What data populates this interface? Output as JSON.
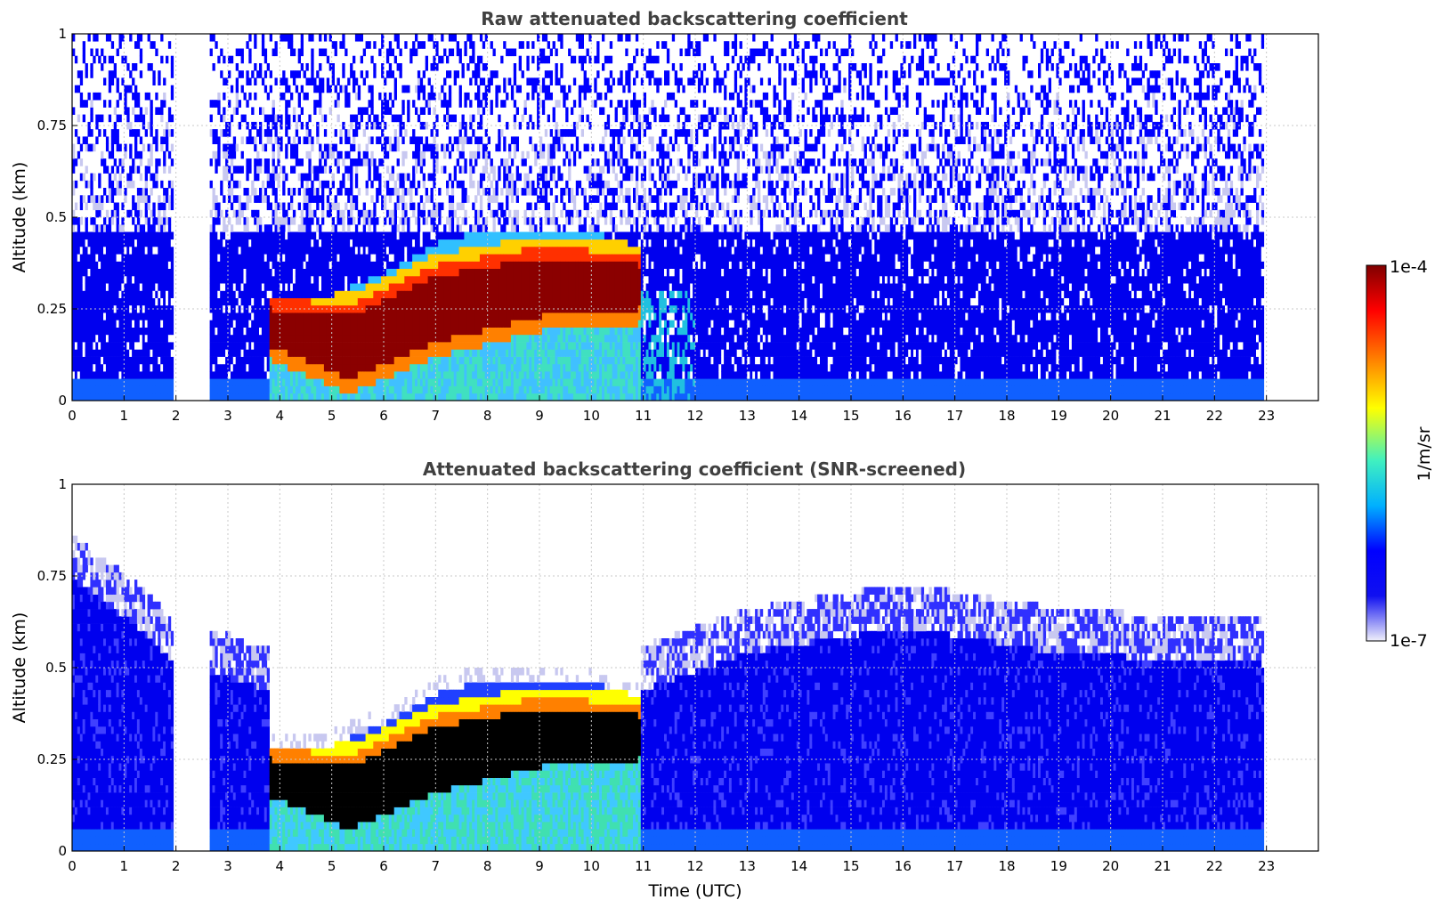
{
  "chart_data": [
    {
      "type": "heatmap",
      "title": "Raw attenuated backscattering coefficient",
      "xlabel": "",
      "ylabel": "Altitude (km)",
      "xlim": [
        0,
        24
      ],
      "ylim": [
        0,
        1
      ],
      "x_ticks": [
        "0",
        "1",
        "2",
        "3",
        "4",
        "5",
        "6",
        "7",
        "8",
        "9",
        "10",
        "11",
        "12",
        "13",
        "14",
        "15",
        "16",
        "17",
        "18",
        "19",
        "20",
        "21",
        "22",
        "23"
      ],
      "y_ticks": [
        "0",
        "0.25",
        "0.5",
        "0.75",
        "1"
      ],
      "grid": true,
      "data_gaps_hours": [
        [
          1.95,
          2.6
        ],
        [
          22.95,
          24
        ]
      ],
      "layer_top_km": [
        {
          "x": 3.75,
          "y": 0.28
        },
        {
          "x": 4.5,
          "y": 0.26
        },
        {
          "x": 5.0,
          "y": 0.28
        },
        {
          "x": 6.0,
          "y": 0.34
        },
        {
          "x": 7.0,
          "y": 0.42
        },
        {
          "x": 8.0,
          "y": 0.46
        },
        {
          "x": 9.0,
          "y": 0.45
        },
        {
          "x": 10.0,
          "y": 0.45
        },
        {
          "x": 10.9,
          "y": 0.41
        }
      ],
      "strong_layer_km": [
        {
          "x": 3.8,
          "low": 0.14,
          "high": 0.24
        },
        {
          "x": 5.3,
          "low": 0.05,
          "high": 0.22
        },
        {
          "x": 7.0,
          "low": 0.15,
          "high": 0.33
        },
        {
          "x": 9.0,
          "low": 0.22,
          "high": 0.38
        },
        {
          "x": 10.9,
          "low": 0.24,
          "high": 0.36
        }
      ],
      "noise_base_top_km": 0.45
    },
    {
      "type": "heatmap",
      "title": "Attenuated backscattering coefficient (SNR-screened)",
      "xlabel": "Time (UTC)",
      "ylabel": "Altitude (km)",
      "xlim": [
        0,
        24
      ],
      "ylim": [
        0,
        1
      ],
      "x_ticks": [
        "0",
        "1",
        "2",
        "3",
        "4",
        "5",
        "6",
        "7",
        "8",
        "9",
        "10",
        "11",
        "12",
        "13",
        "14",
        "15",
        "16",
        "17",
        "18",
        "19",
        "20",
        "21",
        "22",
        "23"
      ],
      "y_ticks": [
        "0",
        "0.25",
        "0.5",
        "0.75",
        "1"
      ],
      "grid": true,
      "data_gaps_hours": [
        [
          1.95,
          2.6
        ],
        [
          22.95,
          24
        ]
      ],
      "screened_top_km": [
        {
          "x": 0,
          "y": 0.85
        },
        {
          "x": 1.0,
          "y": 0.75
        },
        {
          "x": 1.95,
          "y": 0.62
        },
        {
          "x": 2.6,
          "y": 0.6
        },
        {
          "x": 3.7,
          "y": 0.55
        },
        {
          "x": 11.0,
          "y": 0.55
        },
        {
          "x": 13.0,
          "y": 0.65
        },
        {
          "x": 16.0,
          "y": 0.72
        },
        {
          "x": 19.0,
          "y": 0.65
        },
        {
          "x": 22.9,
          "y": 0.62
        }
      ]
    }
  ],
  "colorbar": {
    "label": "1/m/sr",
    "max_label": "1e-4",
    "min_label": "1e-7",
    "scale": "log",
    "colormap": [
      "#f0f0fa",
      "#0000ff",
      "#00b0ff",
      "#40f0c0",
      "#ffff00",
      "#ff8000",
      "#ff0000",
      "#800000"
    ]
  }
}
